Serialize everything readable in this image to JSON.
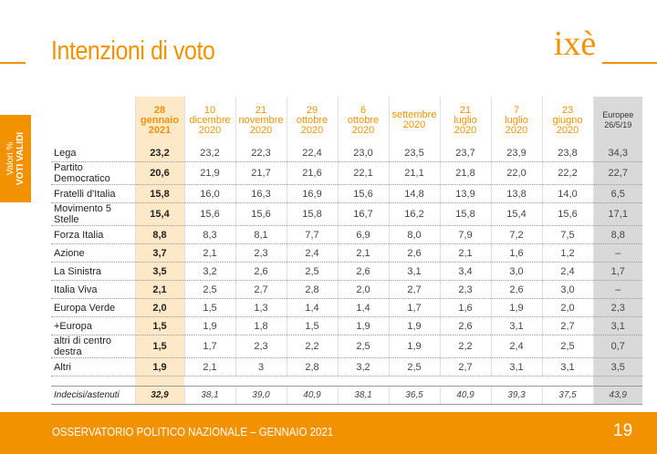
{
  "title": "Intenzioni di voto",
  "logo_text": "ixè",
  "side_label": {
    "line1": "Valori %",
    "line2": "VOTI VALIDI"
  },
  "columns": [
    {
      "l1": "28",
      "l2": "gennaio",
      "l3": "2021"
    },
    {
      "l1": "10",
      "l2": "dicembre",
      "l3": "2020"
    },
    {
      "l1": "21",
      "l2": "novembre",
      "l3": "2020"
    },
    {
      "l1": "29",
      "l2": "ottobre",
      "l3": "2020"
    },
    {
      "l1": "6",
      "l2": "ottobre",
      "l3": "2020"
    },
    {
      "l1": "",
      "l2": "settembre",
      "l3": "2020"
    },
    {
      "l1": "21",
      "l2": "luglio",
      "l3": "2020"
    },
    {
      "l1": "7",
      "l2": "luglio",
      "l3": "2020"
    },
    {
      "l1": "23",
      "l2": "giugno",
      "l3": "2020"
    },
    {
      "l1": "",
      "l2": "Europee",
      "l3": "26/5/19"
    }
  ],
  "rows": [
    {
      "name": "Lega",
      "values": [
        "23,2",
        "23,2",
        "22,3",
        "22,4",
        "23,0",
        "23,5",
        "23,7",
        "23,9",
        "23,8",
        "34,3"
      ]
    },
    {
      "name": "Partito Democratico",
      "values": [
        "20,6",
        "21,9",
        "21,7",
        "21,6",
        "22,1",
        "21,1",
        "21,8",
        "22,0",
        "22,2",
        "22,7"
      ]
    },
    {
      "name": "Fratelli d'Italia",
      "values": [
        "15,8",
        "16,0",
        "16,3",
        "16,9",
        "15,6",
        "14,8",
        "13,9",
        "13,8",
        "14,0",
        "6,5"
      ]
    },
    {
      "name": "Movimento 5 Stelle",
      "values": [
        "15,4",
        "15,6",
        "15,6",
        "15,8",
        "16,7",
        "16,2",
        "15,8",
        "15,4",
        "15,6",
        "17,1"
      ]
    },
    {
      "name": "Forza Italia",
      "values": [
        "8,8",
        "8,3",
        "8,1",
        "7,7",
        "6,9",
        "8,0",
        "7,9",
        "7,2",
        "7,5",
        "8,8"
      ]
    },
    {
      "name": "Azione",
      "values": [
        "3,7",
        "2,1",
        "2,3",
        "2,4",
        "2,1",
        "2,6",
        "2,1",
        "1,6",
        "1,2",
        "–"
      ]
    },
    {
      "name": "La Sinistra",
      "values": [
        "3,5",
        "3,2",
        "2,6",
        "2,5",
        "2,6",
        "3,1",
        "3,4",
        "3,0",
        "2,4",
        "1,7"
      ]
    },
    {
      "name": "Italia Viva",
      "values": [
        "2,1",
        "2,5",
        "2,7",
        "2,8",
        "2,0",
        "2,7",
        "2,3",
        "2,6",
        "3,0",
        "–"
      ]
    },
    {
      "name": "Europa Verde",
      "values": [
        "2,0",
        "1,5",
        "1,3",
        "1,4",
        "1,4",
        "1,7",
        "1,6",
        "1,9",
        "2,0",
        "2,3"
      ]
    },
    {
      "name": "+Europa",
      "values": [
        "1,5",
        "1,9",
        "1,8",
        "1,5",
        "1,9",
        "1,9",
        "2,6",
        "3,1",
        "2,7",
        "3,1"
      ]
    },
    {
      "name": "altri di centro destra",
      "values": [
        "1,5",
        "1,7",
        "2,3",
        "2,2",
        "2,5",
        "1,9",
        "2,2",
        "2,4",
        "2,5",
        "0,7"
      ]
    },
    {
      "name": "Altri",
      "values": [
        "1,9",
        "2,1",
        "3",
        "2,8",
        "3,2",
        "2,5",
        "2,7",
        "3,1",
        "3,1",
        "3,5"
      ]
    }
  ],
  "footer_row": {
    "name": "Indecisi/astenuti",
    "values": [
      "32,9",
      "38,1",
      "39,0",
      "40,9",
      "38,1",
      "36,5",
      "40,9",
      "39,3",
      "37,5",
      "43,9"
    ]
  },
  "footer": {
    "text": "OSSERVATORIO POLITICO NAZIONALE – GENNAIO 2021",
    "page": "19"
  }
}
